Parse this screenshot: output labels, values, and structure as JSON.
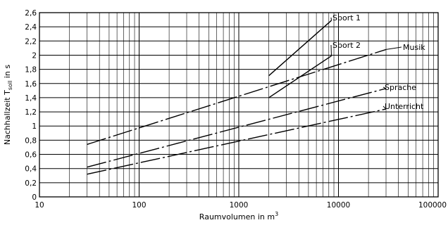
{
  "chart_data": {
    "type": "line",
    "xscale": "log",
    "xlim": [
      10,
      100000
    ],
    "ylim": [
      0,
      2.6
    ],
    "xlabel": "Raumvolumen in m",
    "xlabel_sup": "3",
    "ylabel_main": "Nachhallzeit T",
    "ylabel_sub": "soll",
    "ylabel_tail": " in s",
    "x_ticks": [
      "10",
      "100",
      "1000",
      "10000",
      "100000"
    ],
    "y_ticks": [
      "0",
      "0,2",
      "0,4",
      "0,6",
      "0,8",
      "1",
      "1,2",
      "1,4",
      "1,6",
      "1,8",
      "2",
      "2,2",
      "2,4",
      "2,6"
    ],
    "grid": true,
    "series": [
      {
        "name": "Sport 1",
        "dash": "solid",
        "x": [
          2000,
          8500
        ],
        "y": [
          1.71,
          2.49
        ]
      },
      {
        "name": "Sport 2",
        "dash": "solid",
        "x": [
          2000,
          8500
        ],
        "y": [
          1.4,
          1.99
        ]
      },
      {
        "name": "Musik",
        "dash": "dashdot",
        "x": [
          30,
          30000
        ],
        "y": [
          0.74,
          2.08
        ]
      },
      {
        "name": "Sprache",
        "dash": "dashdot",
        "x": [
          30,
          30000
        ],
        "y": [
          0.42,
          1.53
        ]
      },
      {
        "name": "Unterricht",
        "dash": "dashdot",
        "x": [
          30,
          30000
        ],
        "y": [
          0.32,
          1.24
        ]
      }
    ]
  }
}
